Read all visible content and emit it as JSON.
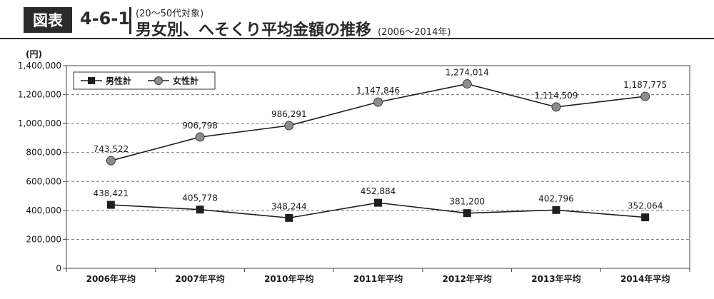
{
  "header": {
    "badge": "図表",
    "number": "4-6-1",
    "subtitle": "(20〜50代対象)",
    "title": "男女別、へそくり平均金額の推移",
    "range": "(2006〜2014年)"
  },
  "chart_data": {
    "type": "line",
    "unit_label": "(円)",
    "categories": [
      "2006年平均",
      "2007年平均",
      "2010年平均",
      "2011年平均",
      "2012年平均",
      "2013年平均",
      "2014年平均"
    ],
    "ylim": [
      0,
      1400000
    ],
    "yticks": [
      0,
      200000,
      400000,
      600000,
      800000,
      1000000,
      1200000,
      1400000
    ],
    "ytick_labels": [
      "0",
      "200,000",
      "400,000",
      "600,000",
      "800,000",
      "1,000,000",
      "1,200,000",
      "1,400,000"
    ],
    "grid": true,
    "legend_position": "top-left",
    "series": [
      {
        "name": "男性計",
        "marker": "square",
        "color": "#1f1f1f",
        "values": [
          438421,
          405778,
          348244,
          452884,
          381200,
          402796,
          352064
        ],
        "labels": [
          "438,421",
          "405,778",
          "348,244",
          "452,884",
          "381,200",
          "402,796",
          "352,064"
        ]
      },
      {
        "name": "女性計",
        "marker": "circle",
        "color": "#8c8c8c",
        "values": [
          743522,
          906798,
          986291,
          1147846,
          1274014,
          1114509,
          1187775
        ],
        "labels": [
          "743,522",
          "906,798",
          "986,291",
          "1,147,846",
          "1,274,014",
          "1,114,509",
          "1,187,775"
        ]
      }
    ]
  }
}
